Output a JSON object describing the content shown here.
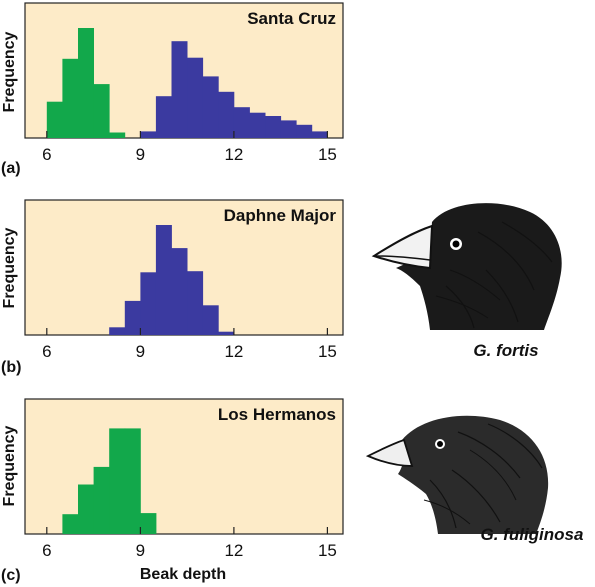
{
  "colors": {
    "panel_background": "#fdebc8",
    "fuliginosa": "#12a84b",
    "fortis": "#3b3aa0"
  },
  "chart_data": [
    {
      "type": "bar",
      "panel_label": "(a)",
      "title": "Santa Cruz",
      "ylabel": "Frequency",
      "xlabel": "",
      "xlim": [
        5.3,
        15.5
      ],
      "xticks": [
        "6",
        "9",
        "12",
        "15"
      ],
      "bin_width": 0.5,
      "series": [
        {
          "color": "#12a84b",
          "x": [
            6.0,
            6.5,
            7.0,
            7.5,
            8.0
          ],
          "values": [
            0.33,
            0.72,
            1.0,
            0.49,
            0.05
          ]
        },
        {
          "color": "#3b3aa0",
          "x": [
            9.0,
            9.5,
            10.0,
            10.5,
            11.0,
            11.5,
            12.0,
            12.5,
            13.0,
            13.5,
            14.0,
            14.5
          ],
          "values": [
            0.06,
            0.38,
            0.88,
            0.73,
            0.56,
            0.42,
            0.28,
            0.23,
            0.2,
            0.16,
            0.12,
            0.06
          ]
        }
      ]
    },
    {
      "type": "bar",
      "panel_label": "(b)",
      "title": "Daphne Major",
      "ylabel": "Frequency",
      "xlabel": "",
      "xlim": [
        5.3,
        15.5
      ],
      "xticks": [
        "6",
        "9",
        "12",
        "15"
      ],
      "bin_width": 0.5,
      "series": [
        {
          "color": "#3b3aa0",
          "x": [
            8.0,
            8.5,
            9.0,
            9.5,
            10.0,
            10.5,
            11.0,
            11.5
          ],
          "values": [
            0.07,
            0.31,
            0.57,
            1.0,
            0.79,
            0.58,
            0.27,
            0.03
          ]
        }
      ]
    },
    {
      "type": "bar",
      "panel_label": "(c)",
      "title": "Los Hermanos",
      "ylabel": "Frequency",
      "xlabel": "Beak depth",
      "xlim": [
        5.3,
        15.5
      ],
      "xticks": [
        "6",
        "9",
        "12",
        "15"
      ],
      "bin_width": 0.5,
      "series": [
        {
          "color": "#12a84b",
          "x": [
            6.5,
            7.0,
            7.5,
            8.0,
            8.5,
            9.0
          ],
          "values": [
            0.18,
            0.45,
            0.61,
            0.96,
            0.96,
            0.19
          ]
        }
      ]
    }
  ],
  "finches": [
    {
      "name": "G. fortis"
    },
    {
      "name": "G. fuliginosa"
    }
  ]
}
